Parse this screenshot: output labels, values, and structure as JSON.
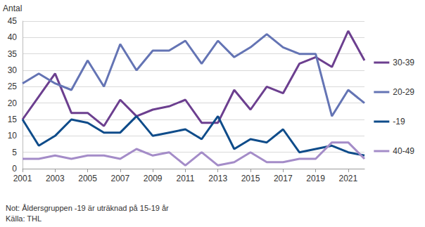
{
  "chart_data": {
    "type": "line",
    "y_label": "Antal",
    "annotations": [
      "Not: Åldersgruppen -19 är uträknad på 15-19 år",
      "Källa: THL"
    ],
    "x": [
      2001,
      2002,
      2003,
      2004,
      2005,
      2006,
      2007,
      2008,
      2009,
      2010,
      2011,
      2012,
      2013,
      2014,
      2015,
      2016,
      2017,
      2018,
      2019,
      2020,
      2021,
      2022
    ],
    "xlim": [
      2001,
      2022
    ],
    "xticks": [
      2001,
      2003,
      2005,
      2007,
      2009,
      2011,
      2013,
      2015,
      2017,
      2019,
      2021
    ],
    "ylim": [
      0,
      45
    ],
    "yticks": [
      0,
      5,
      10,
      15,
      20,
      25,
      30,
      35,
      40,
      45
    ],
    "grid": true,
    "legend": "right",
    "series": [
      {
        "name": "30-39",
        "color": "#6c3f8f",
        "values": [
          15,
          22,
          29,
          17,
          17,
          13,
          21,
          16,
          18,
          19,
          21,
          14,
          14,
          24,
          18,
          25,
          23,
          32,
          34,
          31,
          42,
          33
        ]
      },
      {
        "name": "20-29",
        "color": "#6474b4",
        "values": [
          26,
          29,
          26,
          24,
          33,
          25,
          38,
          30,
          36,
          36,
          39,
          32,
          39,
          34,
          37,
          41,
          37,
          35,
          35,
          16,
          24,
          20
        ]
      },
      {
        "name": "-19",
        "color": "#0f4c8a",
        "values": [
          15,
          7,
          10,
          15,
          14,
          11,
          11,
          16,
          10,
          11,
          12,
          9,
          16,
          6,
          9,
          8,
          12,
          5,
          6,
          7,
          5,
          4
        ]
      },
      {
        "name": "40-49",
        "color": "#a48cc8",
        "values": [
          3,
          3,
          4,
          3,
          4,
          4,
          3,
          6,
          4,
          5,
          1,
          5,
          1,
          2,
          5,
          2,
          2,
          3,
          3,
          8,
          8,
          3
        ]
      }
    ]
  }
}
